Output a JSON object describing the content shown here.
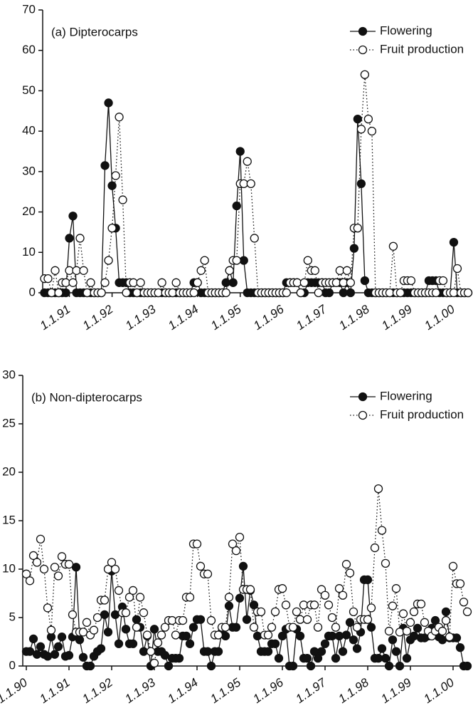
{
  "chart_data": [
    {
      "type": "line",
      "title": "(a) Dipterocarps",
      "legend": "top-right",
      "x": [
        5,
        6,
        7,
        8,
        9,
        10,
        11,
        12,
        13,
        14,
        15,
        16,
        17,
        18,
        19,
        20,
        21,
        22,
        23,
        24,
        25,
        26,
        27,
        28,
        29,
        30,
        31,
        32,
        33,
        34,
        35,
        36,
        37,
        38,
        39,
        40,
        41,
        42,
        43,
        44,
        45,
        46,
        47,
        48,
        49,
        50,
        51,
        52,
        53,
        54,
        55,
        56,
        57,
        58,
        59,
        60,
        61,
        62,
        63,
        64,
        65,
        66,
        67,
        68,
        69,
        70,
        71,
        72,
        73,
        74,
        75,
        76,
        77,
        78,
        79,
        80,
        81,
        82,
        83,
        84,
        85,
        86,
        87,
        88,
        89,
        90,
        91,
        92,
        93,
        94,
        95,
        96,
        97,
        98,
        99,
        100,
        101,
        102,
        103,
        104,
        105,
        106,
        107,
        108,
        109,
        110,
        111,
        112,
        113,
        114,
        115,
        116,
        117,
        118,
        119,
        120,
        121,
        122,
        123,
        124
      ],
      "series": [
        {
          "name": "Flowering",
          "color": "#111111",
          "fill": "#111111",
          "dash": "solid",
          "values": [
            0,
            0,
            0,
            0,
            0,
            0,
            0,
            13.5,
            19,
            0,
            0,
            0,
            0,
            0,
            0,
            0,
            0,
            31.5,
            47,
            26.5,
            16,
            2.5,
            2.5,
            2.5,
            0,
            0,
            0,
            0,
            0,
            0,
            0,
            0,
            0,
            0,
            0,
            0,
            0,
            0,
            0,
            0,
            0,
            0,
            2.5,
            2.5,
            0,
            0,
            0,
            0,
            0,
            0,
            0,
            2.5,
            5.5,
            2.5,
            21.5,
            35,
            8,
            0,
            0,
            0,
            0,
            0,
            0,
            0,
            0,
            0,
            0,
            0,
            2.5,
            2.5,
            2.5,
            2.5,
            0,
            0,
            2.5,
            2.5,
            2.5,
            2.5,
            2.5,
            0,
            0,
            2.5,
            2.5,
            2.5,
            0,
            2.5,
            0,
            11,
            43,
            27,
            3,
            0,
            0,
            0,
            0,
            0,
            0,
            0,
            0,
            0,
            0,
            0,
            0,
            0,
            0,
            0,
            0,
            0,
            3,
            3,
            3,
            0,
            0,
            0,
            0,
            12.5,
            0,
            0,
            0,
            0
          ]
        },
        {
          "name": "Fruit production",
          "color": "#111111",
          "fill": "#ffffff",
          "dash": "dotted",
          "values": [
            3.5,
            3.5,
            0,
            5.5,
            0,
            2.5,
            2.5,
            5.5,
            2.5,
            5.5,
            13.5,
            5.5,
            0,
            2.5,
            0,
            0,
            0,
            2.5,
            8,
            16,
            29,
            43.5,
            23,
            0,
            2.5,
            2.5,
            0,
            2.5,
            0,
            0,
            0,
            0,
            0,
            2.5,
            0,
            0,
            0,
            2.5,
            0,
            0,
            0,
            0,
            0,
            2.5,
            5.5,
            8,
            0,
            0,
            0,
            0,
            0,
            0,
            5.5,
            8,
            8,
            27,
            27,
            32.5,
            27,
            13.5,
            0,
            0,
            0,
            0,
            0,
            0,
            0,
            0,
            0,
            2.5,
            2.5,
            2.5,
            0,
            2.5,
            8,
            5.5,
            5.5,
            0,
            2.5,
            2.5,
            2.5,
            2.5,
            2.5,
            5.5,
            2.5,
            5.5,
            2.5,
            16,
            16,
            40.5,
            54,
            43,
            40,
            0,
            0,
            0,
            0,
            0,
            11.5,
            0,
            0,
            3,
            3,
            3,
            0,
            0,
            0,
            0,
            0,
            0,
            0,
            3,
            3,
            0,
            0,
            0,
            6,
            0,
            0,
            0
          ]
        }
      ],
      "xlim": [
        4.5,
        124.8
      ],
      "xticks": [
        {
          "value": 12,
          "label": "1.1.91"
        },
        {
          "value": 24,
          "label": "1.1.92"
        },
        {
          "value": 36,
          "label": "1.1.93"
        },
        {
          "value": 48,
          "label": "1.1.94"
        },
        {
          "value": 60,
          "label": "1.1.95"
        },
        {
          "value": 72,
          "label": "1.1.96"
        },
        {
          "value": 84,
          "label": "1.1.97"
        },
        {
          "value": 96,
          "label": "1.1.98"
        },
        {
          "value": 108,
          "label": "1.1.99"
        },
        {
          "value": 120,
          "label": "1.1.00"
        }
      ],
      "ylim": [
        0,
        70
      ],
      "yticks": [
        0,
        10,
        20,
        30,
        40,
        50,
        60,
        70
      ]
    },
    {
      "type": "line",
      "title": "(b) Non-dipterocarps",
      "legend": "top-right",
      "x": [
        0,
        1,
        2,
        3,
        4,
        5,
        6,
        7,
        8,
        9,
        10,
        11,
        12,
        13,
        14,
        15,
        16,
        17,
        18,
        19,
        20,
        21,
        22,
        23,
        24,
        25,
        26,
        27,
        28,
        29,
        30,
        31,
        32,
        33,
        34,
        35,
        36,
        37,
        38,
        39,
        40,
        41,
        42,
        43,
        44,
        45,
        46,
        47,
        48,
        49,
        50,
        51,
        52,
        53,
        54,
        55,
        56,
        57,
        58,
        59,
        60,
        61,
        62,
        63,
        64,
        65,
        66,
        67,
        68,
        69,
        70,
        71,
        72,
        73,
        74,
        75,
        76,
        77,
        78,
        79,
        80,
        81,
        82,
        83,
        84,
        85,
        86,
        87,
        88,
        89,
        90,
        91,
        92,
        93,
        94,
        95,
        96,
        97,
        98,
        99,
        100,
        101,
        102,
        103,
        104,
        105,
        106,
        107,
        108,
        109,
        110,
        111,
        112,
        113,
        114,
        115,
        116,
        117,
        118,
        119,
        120,
        121,
        122,
        123,
        124
      ],
      "series": [
        {
          "name": "Flowering",
          "color": "#111111",
          "fill": "#111111",
          "dash": "solid",
          "values": [
            1.5,
            1.5,
            2.8,
            1.2,
            2,
            1.2,
            1,
            3,
            1.2,
            2,
            3,
            1,
            1.1,
            3,
            10.2,
            2.7,
            0.9,
            0,
            0,
            1,
            1.5,
            1.8,
            5.3,
            3.5,
            9.8,
            5.3,
            2.3,
            6.1,
            3.8,
            2.3,
            2.3,
            4.8,
            4,
            1.5,
            3.1,
            0,
            3.8,
            1.5,
            1.5,
            1.1,
            0,
            0.8,
            0.8,
            0.8,
            3.1,
            3.1,
            2.3,
            4,
            4.8,
            4.8,
            1.5,
            1.5,
            0,
            1.5,
            1.5,
            3.5,
            3.1,
            6.2,
            4,
            4,
            7,
            10.3,
            4.8,
            7.8,
            6.3,
            3.1,
            1.5,
            1.5,
            1.5,
            2.3,
            2.3,
            0.8,
            3.1,
            3.8,
            0,
            0,
            3.8,
            3.1,
            0.8,
            0.8,
            0,
            1.5,
            0.8,
            1.5,
            2.3,
            3.1,
            3.1,
            0.8,
            3.1,
            1.5,
            3.2,
            4.5,
            2.7,
            1.8,
            3.5,
            8.9,
            8.9,
            4,
            0.8,
            0.8,
            1.8,
            0.8,
            0,
            2.7,
            1.5,
            0,
            3.9,
            0.8,
            2.7,
            3.1,
            3.9,
            2.9,
            2.9,
            3.1,
            3.9,
            4.7,
            3,
            2.7,
            5.6,
            2.9,
            2.9,
            2.9,
            1.9,
            0,
            0
          ]
        },
        {
          "name": "Fruit production",
          "color": "#111111",
          "fill": "#ffffff",
          "dash": "dotted",
          "values": [
            9.5,
            8.8,
            11.4,
            10.7,
            13.1,
            10,
            6,
            3.7,
            10.2,
            9.3,
            11.3,
            10.5,
            10.5,
            5.3,
            3.5,
            3.5,
            3.5,
            4.5,
            3.2,
            3.7,
            5,
            6.8,
            6.8,
            10,
            10.7,
            10,
            7.8,
            5.5,
            5.5,
            7.1,
            7.8,
            4,
            7.1,
            5.5,
            3.2,
            1.5,
            0.3,
            2.4,
            3.2,
            4,
            4.7,
            4.7,
            3.2,
            4.7,
            4.7,
            7.1,
            7.1,
            12.6,
            12.6,
            10.3,
            9.5,
            9.5,
            4.7,
            3.2,
            3.2,
            4,
            4,
            7.1,
            12.6,
            11.9,
            13.3,
            7.9,
            7.9,
            7.9,
            4,
            5.6,
            5.6,
            3.2,
            3.2,
            4,
            5.6,
            7.9,
            8,
            6.3,
            4,
            4,
            5.6,
            4.8,
            6.3,
            4.8,
            6.3,
            6.3,
            4,
            7.9,
            7.3,
            6.3,
            5,
            4,
            8,
            7.3,
            10.5,
            9.6,
            5.6,
            4,
            4.8,
            4.8,
            4.8,
            6,
            12.2,
            18.3,
            14,
            10.6,
            3.6,
            6.2,
            8,
            3.5,
            5.4,
            3.6,
            4.5,
            5.6,
            6.4,
            6.4,
            4.5,
            3.6,
            3.1,
            3.6,
            4,
            3.6,
            4.7,
            3,
            10.3,
            8.5,
            8.5,
            6.6,
            5.6
          ]
        }
      ],
      "xlim": [
        -1,
        125
      ],
      "xticks": [
        {
          "value": 0,
          "label": "1.1.90"
        },
        {
          "value": 12,
          "label": "1.1.91"
        },
        {
          "value": 24,
          "label": "1.1.92"
        },
        {
          "value": 36,
          "label": "1.1.93"
        },
        {
          "value": 48,
          "label": "1.1.94"
        },
        {
          "value": 60,
          "label": "1.1.95"
        },
        {
          "value": 72,
          "label": "1.1.96"
        },
        {
          "value": 84,
          "label": "1.1.97"
        },
        {
          "value": 96,
          "label": "1.1.98"
        },
        {
          "value": 108,
          "label": "1.1.99"
        },
        {
          "value": 120,
          "label": "1.1.00"
        }
      ],
      "ylim": [
        0,
        30
      ],
      "yticks": [
        0,
        5,
        10,
        15,
        20,
        25,
        30
      ]
    }
  ]
}
